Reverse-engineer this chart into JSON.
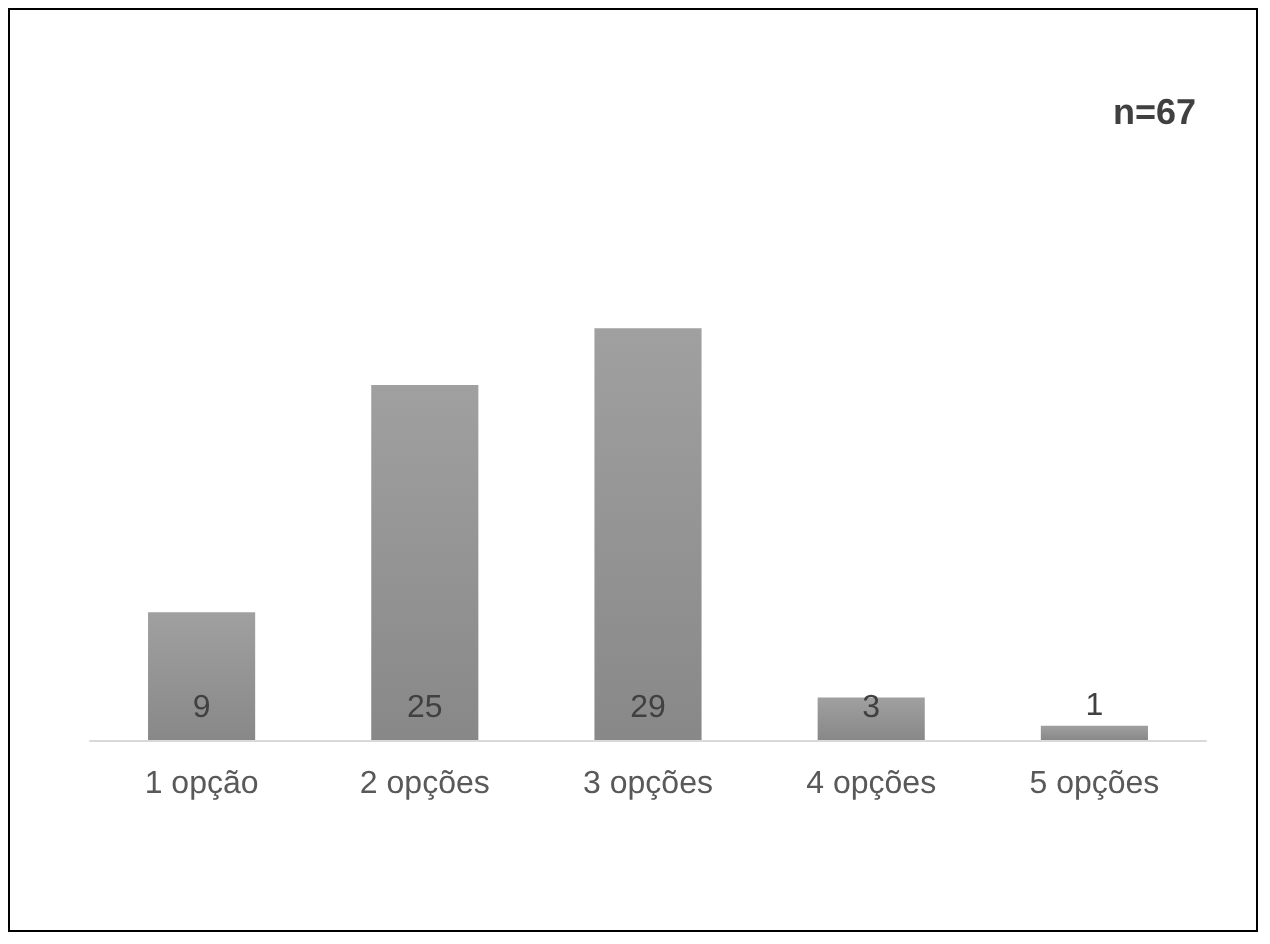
{
  "chart_data": {
    "type": "bar",
    "categories": [
      "1 opção",
      "2 opções",
      "3 opções",
      "4 opções",
      "5 opções"
    ],
    "values": [
      9,
      25,
      29,
      3,
      1
    ],
    "color": "#a0a0a0",
    "data_labels": true,
    "annotations": [
      "n=67"
    ]
  }
}
